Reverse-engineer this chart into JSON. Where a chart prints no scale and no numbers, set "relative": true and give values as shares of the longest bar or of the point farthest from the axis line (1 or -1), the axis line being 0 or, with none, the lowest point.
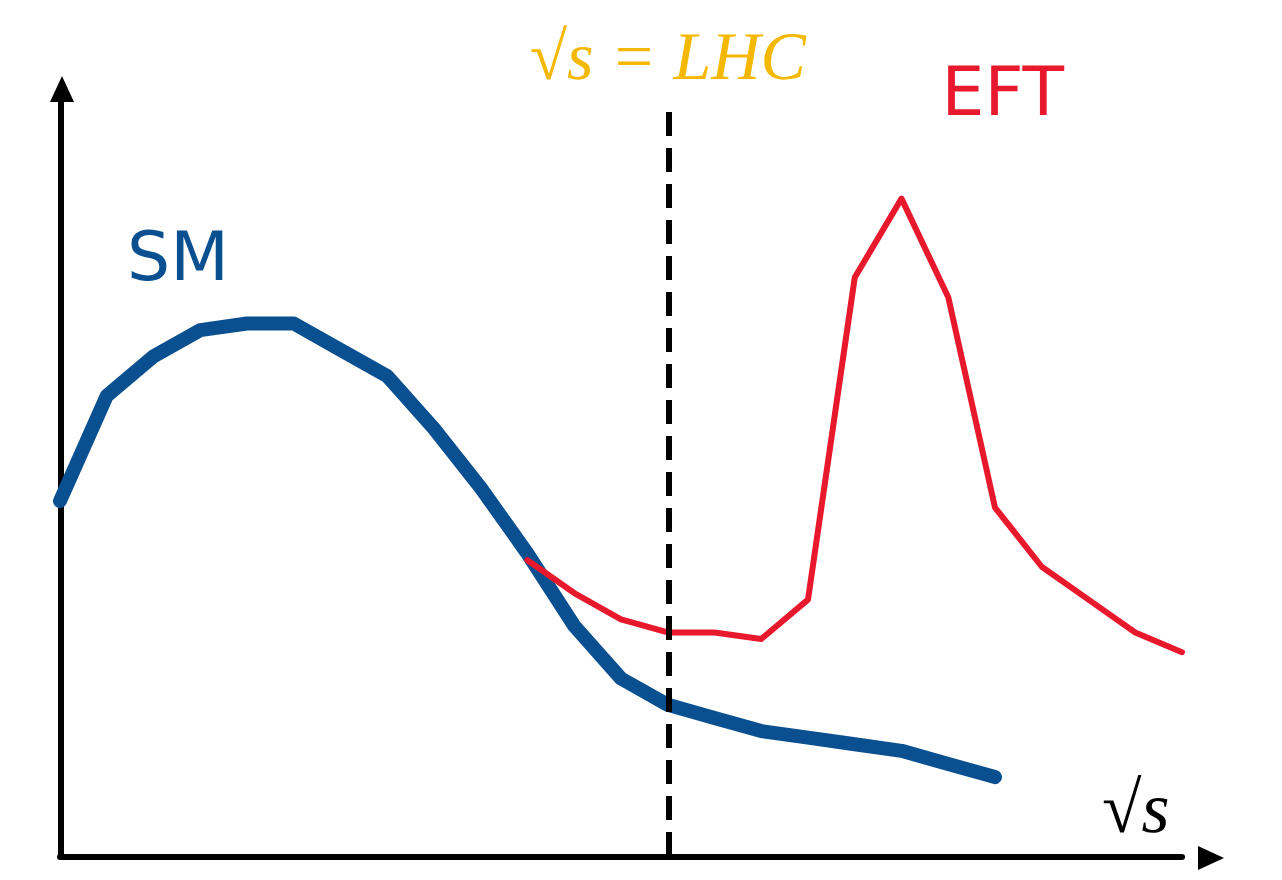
{
  "chart_data": {
    "type": "line",
    "relative": true,
    "xlabel": "√s",
    "categories": [
      null,
      null,
      null,
      null,
      null,
      null,
      null,
      null,
      null,
      null,
      null,
      null,
      null,
      null,
      null,
      null,
      null,
      null,
      null,
      null,
      null,
      null,
      null,
      null,
      null
    ],
    "series": [
      {
        "name": "SM",
        "color": "#0a4f8f",
        "values": [
          0.54,
          0.7,
          0.76,
          0.8,
          0.81,
          0.81,
          0.77,
          0.73,
          0.65,
          0.56,
          0.46,
          0.35,
          0.27,
          0.23,
          0.21,
          0.19,
          0.18,
          0.17,
          0.16,
          0.14,
          0.12,
          null,
          null,
          null,
          null
        ]
      },
      {
        "name": "EFT",
        "color": "#e8192c",
        "values": [
          null,
          null,
          null,
          null,
          null,
          null,
          null,
          null,
          null,
          null,
          0.45,
          0.4,
          0.36,
          0.34,
          0.34,
          0.33,
          0.39,
          0.88,
          1.0,
          0.85,
          0.53,
          0.44,
          0.39,
          0.34,
          0.31
        ]
      }
    ],
    "annotations": [
      "√s = LHC"
    ],
    "grid": false,
    "legend": false,
    "marker": "none",
    "line_style": "solid"
  }
}
